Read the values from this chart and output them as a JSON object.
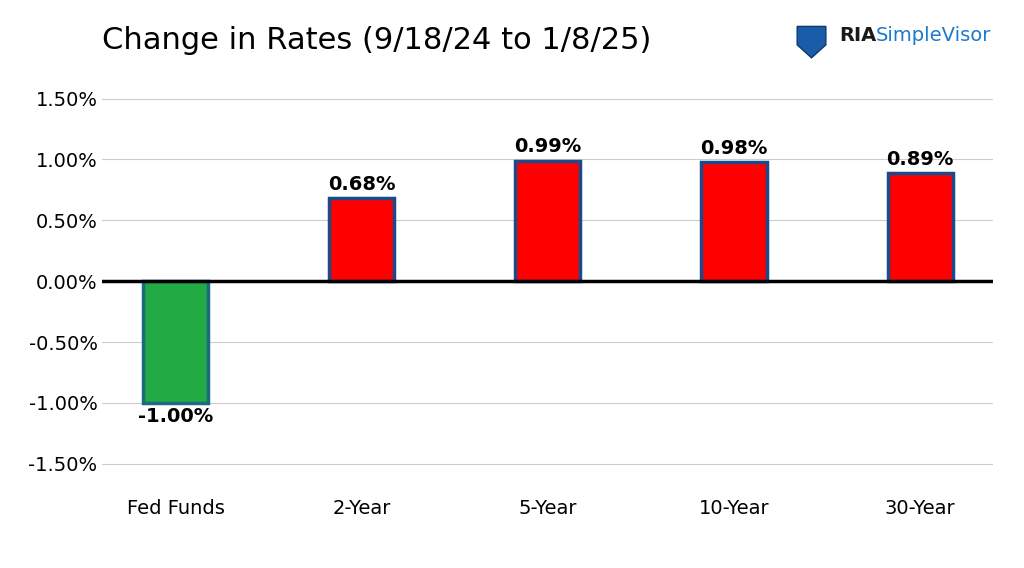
{
  "title": "Change in Rates (9/18/24 to 1/8/25)",
  "categories": [
    "Fed Funds",
    "2-Year",
    "5-Year",
    "10-Year",
    "30-Year"
  ],
  "values": [
    -1.0,
    0.68,
    0.99,
    0.98,
    0.89
  ],
  "labels": [
    "-1.00%",
    "0.68%",
    "0.99%",
    "0.98%",
    "0.89%"
  ],
  "bar_colors": [
    "#22aa44",
    "#ff0000",
    "#ff0000",
    "#ff0000",
    "#ff0000"
  ],
  "bar_edge_colors": [
    "#1a6a80",
    "#1a4a8a",
    "#1a4a8a",
    "#1a4a8a",
    "#1a4a8a"
  ],
  "ylim": [
    -1.75,
    1.75
  ],
  "yticks": [
    -1.5,
    -1.0,
    -0.5,
    0.0,
    0.5,
    1.0,
    1.5
  ],
  "ytick_labels": [
    "-1.50%",
    "-1.00%",
    "-0.50%",
    "0.00%",
    "0.50%",
    "1.00%",
    "1.50%"
  ],
  "title_fontsize": 22,
  "label_fontsize": 14,
  "tick_fontsize": 14,
  "background_color": "#ffffff",
  "grid_color": "#cccccc",
  "zero_line_color": "#000000",
  "bar_width": 0.35,
  "logo_ria_color": "#1a1a1a",
  "logo_sv_color": "#1a7acc",
  "logo_fontsize": 14
}
